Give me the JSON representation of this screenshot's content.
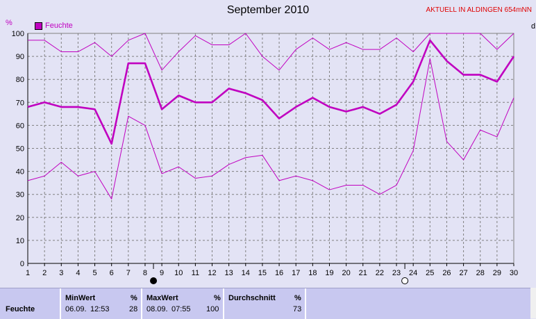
{
  "header": {
    "title": "September 2010",
    "station": "AKTUELL IN ALDINGEN 654mNN",
    "y_unit": "%",
    "right_unit": "d"
  },
  "legend": {
    "label": "Feuchte"
  },
  "colors": {
    "series": "#c000c0",
    "grid": "#808080",
    "background": "#e3e3f5"
  },
  "chart_data": {
    "type": "line",
    "title": "September 2010",
    "ylabel": "%",
    "ylim": [
      0,
      100
    ],
    "yticks": [
      "0",
      "10",
      "20",
      "30",
      "40",
      "50",
      "60",
      "70",
      "80",
      "90",
      "100"
    ],
    "x": [
      1,
      2,
      3,
      4,
      5,
      6,
      7,
      8,
      9,
      10,
      11,
      12,
      13,
      14,
      15,
      16,
      17,
      18,
      19,
      20,
      21,
      22,
      23,
      24,
      25,
      26,
      27,
      28,
      29,
      30
    ],
    "xticks": [
      "1",
      "2",
      "3",
      "4",
      "5",
      "6",
      "7",
      "8",
      "9",
      "10",
      "11",
      "12",
      "13",
      "14",
      "15",
      "16",
      "17",
      "18",
      "19",
      "20",
      "21",
      "22",
      "23",
      "24",
      "25",
      "26",
      "27",
      "28",
      "29",
      "30"
    ],
    "series": [
      {
        "name": "Feuchte",
        "role": "max",
        "values": [
          97,
          97,
          92,
          92,
          96,
          90,
          97,
          100,
          84,
          92,
          99,
          95,
          95,
          100,
          90,
          84,
          93,
          98,
          93,
          96,
          93,
          93,
          98,
          92,
          100,
          100,
          100,
          100,
          93,
          100
        ]
      },
      {
        "name": "Feuchte",
        "role": "mean",
        "values": [
          68,
          70,
          68,
          68,
          67,
          52,
          87,
          87,
          67,
          73,
          70,
          70,
          76,
          74,
          71,
          63,
          68,
          72,
          68,
          66,
          68,
          65,
          69,
          79,
          97,
          88,
          82,
          82,
          79,
          90
        ]
      },
      {
        "name": "Feuchte",
        "role": "min",
        "values": [
          36,
          38,
          44,
          38,
          40,
          28,
          64,
          60,
          39,
          42,
          37,
          38,
          43,
          46,
          47,
          36,
          38,
          36,
          32,
          34,
          34,
          30,
          34,
          49,
          89,
          53,
          45,
          58,
          55,
          72
        ]
      }
    ],
    "moon_phases": [
      {
        "x": 8.5,
        "phase": "new-moon-icon"
      },
      {
        "x": 23.5,
        "phase": "full-moon-icon"
      }
    ],
    "grid": true,
    "legend_position": "top-left"
  },
  "stats": {
    "row_label": "Feuchte",
    "min": {
      "header": "MinWert",
      "unit": "%",
      "date": "06.09.",
      "time": "12:53",
      "value": "28"
    },
    "max": {
      "header": "MaxWert",
      "unit": "%",
      "date": "08.09.",
      "time": "07:55",
      "value": "100"
    },
    "avg": {
      "header": "Durchschnitt",
      "unit": "%",
      "value": "73"
    }
  }
}
